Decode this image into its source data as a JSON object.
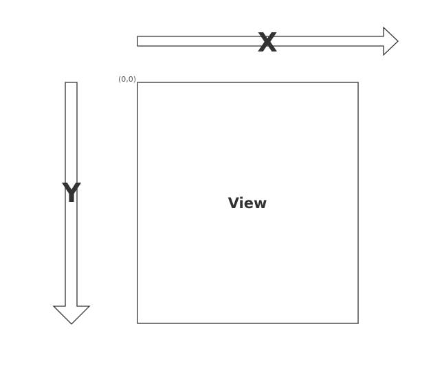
{
  "diagram": {
    "x_axis_label": "X",
    "y_axis_label": "Y",
    "view_label": "View",
    "origin_label": "(0,0)"
  },
  "colors": {
    "stroke": "#333333",
    "text": "#333333",
    "fill": "#ffffff"
  }
}
